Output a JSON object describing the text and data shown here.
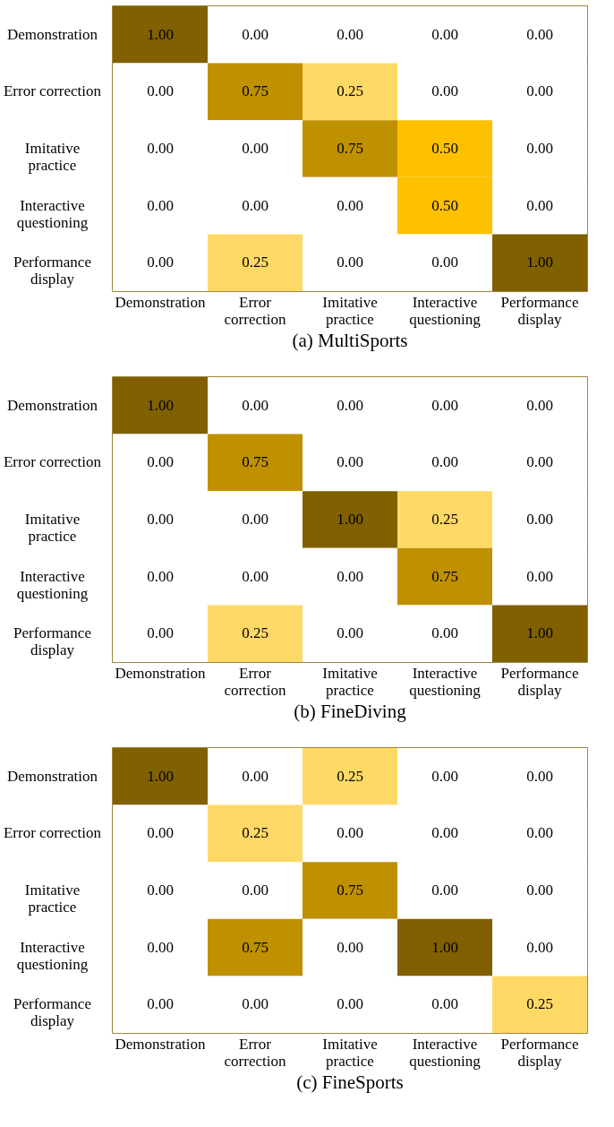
{
  "chart_data": [
    {
      "type": "heatmap",
      "title": "(a) MultiSports",
      "categories": [
        "Demonstration",
        "Error\ncorrection",
        "Imitative\npractice",
        "Interactive\nquestioning",
        "Performance\ndisplay"
      ],
      "y_categories": [
        "Demonstration",
        "Error correction",
        "Imitative\npractice",
        "Interactive\nquestioning",
        "Performance\ndisplay"
      ],
      "colors": [
        "#ffffff",
        "#ffd966",
        "#ffc000",
        "#bf9000",
        "#806000"
      ],
      "cells": [
        [
          1,
          0,
          0,
          0,
          0
        ],
        [
          0,
          0.75,
          0.25,
          0,
          0
        ],
        [
          0,
          0,
          0.75,
          0.5,
          0
        ],
        [
          0,
          0,
          0,
          0.5,
          0
        ],
        [
          0,
          0.25,
          0,
          0,
          1
        ]
      ],
      "cell_labels": [
        [
          "1.00",
          "0.00",
          "0.00",
          "0.00",
          "0.00"
        ],
        [
          "0.00",
          "0.75",
          "0.25",
          "0.00",
          "0.00"
        ],
        [
          "0.00",
          "0.00",
          "0.75",
          "0.50",
          "0.00"
        ],
        [
          "0.00",
          "0.00",
          "0.00",
          "0.50",
          "0.00"
        ],
        [
          "0.00",
          "0.25",
          "0.00",
          "0.00",
          "1.00"
        ]
      ]
    },
    {
      "type": "heatmap",
      "title": "(b) FineDiving",
      "categories": [
        "Demonstration",
        "Error\ncorrection",
        "Imitative\npractice",
        "Interactive\nquestioning",
        "Performance\ndisplay"
      ],
      "y_categories": [
        "Demonstration",
        "Error correction",
        "Imitative\npractice",
        "Interactive\nquestioning",
        "Performance\ndisplay"
      ],
      "colors": [
        "#ffffff",
        "#ffd966",
        "#ffc000",
        "#bf9000",
        "#806000"
      ],
      "cells": [
        [
          1,
          0,
          0,
          0,
          0
        ],
        [
          0,
          0.75,
          0,
          0,
          0
        ],
        [
          0,
          0,
          1,
          0.25,
          0
        ],
        [
          0,
          0,
          0,
          0.75,
          0
        ],
        [
          0,
          0.25,
          0,
          0,
          1
        ]
      ],
      "cell_labels": [
        [
          "1.00",
          "0.00",
          "0.00",
          "0.00",
          "0.00"
        ],
        [
          "0.00",
          "0.75",
          "0.00",
          "0.00",
          "0.00"
        ],
        [
          "0.00",
          "0.00",
          "1.00",
          "0.25",
          "0.00"
        ],
        [
          "0.00",
          "0.00",
          "0.00",
          "0.75",
          "0.00"
        ],
        [
          "0.00",
          "0.25",
          "0.00",
          "0.00",
          "1.00"
        ]
      ]
    },
    {
      "type": "heatmap",
      "title": "(c) FineSports",
      "categories": [
        "Demonstration",
        "Error\ncorrection",
        "Imitative\npractice",
        "Interactive\nquestioning",
        "Performance\ndisplay"
      ],
      "y_categories": [
        "Demonstration",
        "Error correction",
        "Imitative\npractice",
        "Interactive\nquestioning",
        "Performance\ndisplay"
      ],
      "colors": [
        "#ffffff",
        "#ffd966",
        "#ffc000",
        "#bf9000",
        "#806000"
      ],
      "cells": [
        [
          1,
          0,
          0.25,
          0,
          0
        ],
        [
          0,
          0.25,
          0,
          0,
          0
        ],
        [
          0,
          0,
          0.75,
          0,
          0
        ],
        [
          0,
          0.75,
          0,
          1,
          0
        ],
        [
          0,
          0,
          0,
          0,
          0.25
        ]
      ],
      "cell_labels": [
        [
          "1.00",
          "0.00",
          "0.25",
          "0.00",
          "0.00"
        ],
        [
          "0.00",
          "0.25",
          "0.00",
          "0.00",
          "0.00"
        ],
        [
          "0.00",
          "0.00",
          "0.75",
          "0.00",
          "0.00"
        ],
        [
          "0.00",
          "0.75",
          "0.00",
          "1.00",
          "0.00"
        ],
        [
          "0.00",
          "0.00",
          "0.00",
          "0.00",
          "0.25"
        ]
      ]
    }
  ]
}
